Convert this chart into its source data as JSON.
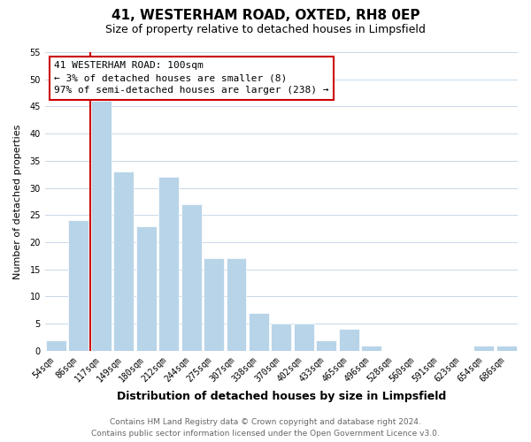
{
  "title": "41, WESTERHAM ROAD, OXTED, RH8 0EP",
  "subtitle": "Size of property relative to detached houses in Limpsfield",
  "xlabel": "Distribution of detached houses by size in Limpsfield",
  "ylabel": "Number of detached properties",
  "footer_line1": "Contains HM Land Registry data © Crown copyright and database right 2024.",
  "footer_line2": "Contains public sector information licensed under the Open Government Licence v3.0.",
  "annotation_title": "41 WESTERHAM ROAD: 100sqm",
  "annotation_line1": "← 3% of detached houses are smaller (8)",
  "annotation_line2": "97% of semi-detached houses are larger (238) →",
  "bar_labels": [
    "54sqm",
    "86sqm",
    "117sqm",
    "149sqm",
    "180sqm",
    "212sqm",
    "244sqm",
    "275sqm",
    "307sqm",
    "338sqm",
    "370sqm",
    "402sqm",
    "433sqm",
    "465sqm",
    "496sqm",
    "528sqm",
    "560sqm",
    "591sqm",
    "623sqm",
    "654sqm",
    "686sqm"
  ],
  "bar_values": [
    2,
    24,
    46,
    33,
    23,
    32,
    27,
    17,
    17,
    7,
    5,
    5,
    2,
    4,
    1,
    0,
    0,
    0,
    0,
    1,
    1
  ],
  "bar_color": "#b8d4e8",
  "vline_color": "#cc0000",
  "vline_x_index": 2,
  "ylim": [
    0,
    55
  ],
  "yticks": [
    0,
    5,
    10,
    15,
    20,
    25,
    30,
    35,
    40,
    45,
    50,
    55
  ],
  "background_color": "#ffffff",
  "grid_color": "#c8d8e8",
  "annotation_box_edge": "#cc0000",
  "title_fontsize": 11,
  "subtitle_fontsize": 9,
  "xlabel_fontsize": 9,
  "ylabel_fontsize": 8,
  "tick_fontsize": 7,
  "footer_fontsize": 6.5,
  "annotation_fontsize": 8
}
